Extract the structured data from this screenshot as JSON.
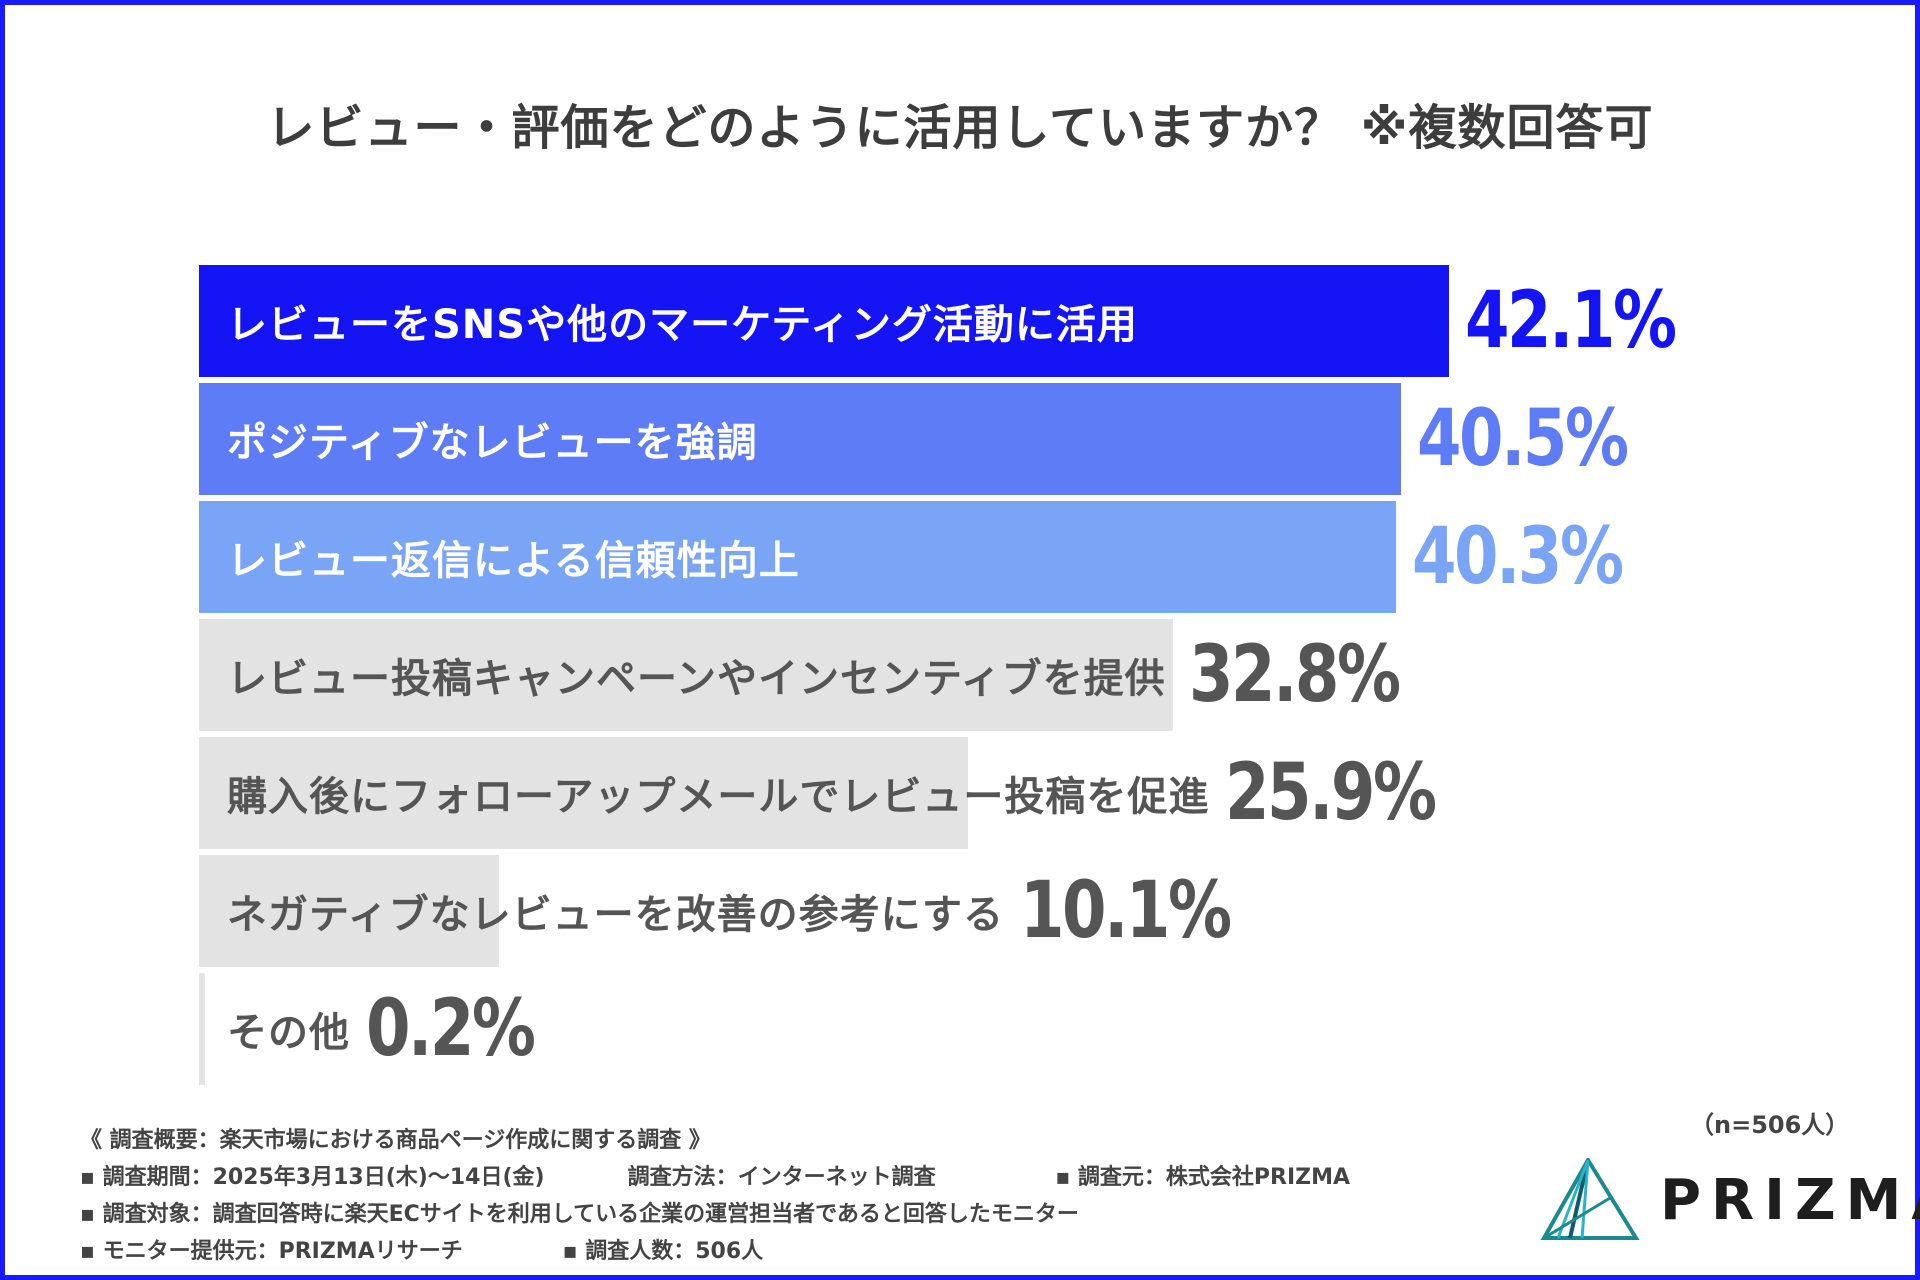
{
  "title": "レビュー・評価をどのように活用していますか？ ※複数回答可",
  "chart_data": {
    "type": "bar",
    "orientation": "horizontal",
    "title": "レビュー・評価をどのように活用していますか？ ※複数回答可",
    "unit": "%",
    "xlim": [
      0,
      42.1
    ],
    "categories": [
      "レビューをSNSや他のマーケティング活動に活用",
      "ポジティブなレビューを強調",
      "レビュー返信による信頼性向上",
      "レビュー投稿キャンペーンやインセンティブを提供",
      "購入後にフォローアップメールでレビュー投稿を促進",
      "ネガティブなレビューを改善の参考にする",
      "その他"
    ],
    "values": [
      42.1,
      40.5,
      40.3,
      32.8,
      25.9,
      10.1,
      0.2
    ],
    "value_labels": [
      "42.1%",
      "40.5%",
      "40.3%",
      "32.8%",
      "25.9%",
      "10.1%",
      "0.2%"
    ],
    "bar_colors": [
      "#1414f5",
      "#5d7cf6",
      "#7aa4f5",
      "#e3e3e3",
      "#e3e3e3",
      "#e3e3e3",
      "#e3e3e3"
    ],
    "label_colors": [
      "#ffffff",
      "#ffffff",
      "#ffffff",
      "#555555",
      "#555555",
      "#555555",
      "#555555"
    ],
    "value_colors": [
      "#1414f5",
      "#5d7cf6",
      "#7aa4f5",
      "#555555",
      "#555555",
      "#555555",
      "#555555"
    ]
  },
  "footnotes": {
    "overview": "《 調査概要：楽天市場における商品ページ作成に関する調査 》",
    "period": "▪ 調査期間：2025年3月13日(木)〜14日(金)",
    "method": "調査方法：インターネット調査",
    "source": "▪ 調査元：株式会社PRIZMA",
    "target": "▪ 調査対象：調査回答時に楽天ECサイトを利用している企業の運営担当者であると回答したモニター",
    "provider": "▪ モニター提供元：PRIZMAリサーチ",
    "count": "▪ 調査人数：506人"
  },
  "sample_size": "（n=506人）",
  "logo": {
    "text": "PRIZMA",
    "colors": [
      "#1b8a8f",
      "#2ab3c7",
      "#0e5a6e"
    ]
  },
  "frame_color": "#1a1aff"
}
